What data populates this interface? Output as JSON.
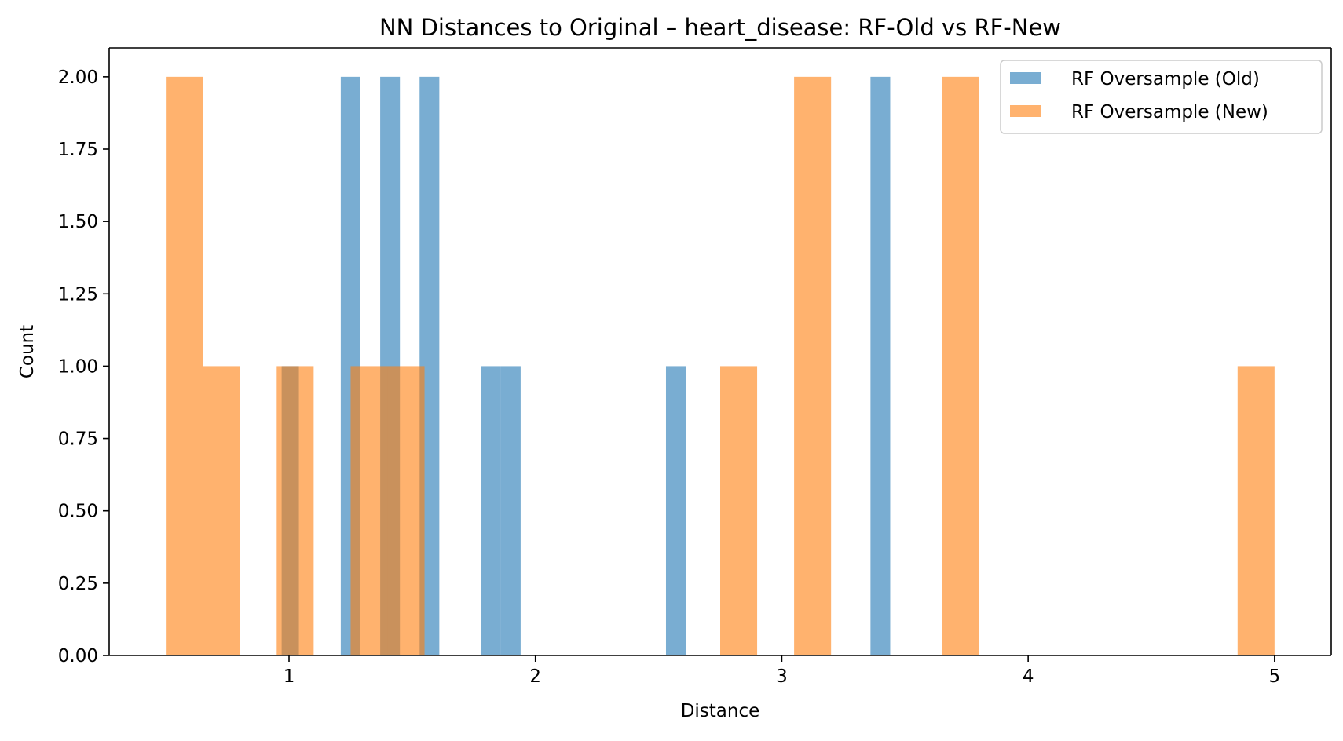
{
  "chart_data": {
    "type": "bar",
    "title": "NN Distances to Original – heart_disease: RF-Old vs RF-New",
    "xlabel": "Distance",
    "ylabel": "Count",
    "xlim": [
      0.27,
      5.23
    ],
    "ylim": [
      0,
      2.1
    ],
    "xticks": [
      1,
      2,
      3,
      4,
      5
    ],
    "xtick_labels": [
      "1",
      "2",
      "3",
      "4",
      "5"
    ],
    "yticks": [
      0,
      0.25,
      0.5,
      0.75,
      1.0,
      1.25,
      1.5,
      1.75,
      2.0
    ],
    "ytick_labels": [
      "0.00",
      "0.25",
      "0.50",
      "0.75",
      "1.00",
      "1.25",
      "1.50",
      "1.75",
      "2.00"
    ],
    "legend_position": "top-right",
    "grid": false,
    "series": [
      {
        "name": "RF Oversample (Old)",
        "color": "#1f77b4",
        "opacity": 0.6,
        "bins": [
          {
            "x0": 0.97,
            "x1": 1.04,
            "count": 1
          },
          {
            "x0": 1.21,
            "x1": 1.29,
            "count": 2
          },
          {
            "x0": 1.37,
            "x1": 1.45,
            "count": 2
          },
          {
            "x0": 1.53,
            "x1": 1.61,
            "count": 2
          },
          {
            "x0": 1.78,
            "x1": 1.86,
            "count": 1
          },
          {
            "x0": 1.86,
            "x1": 1.94,
            "count": 1
          },
          {
            "x0": 2.53,
            "x1": 2.61,
            "count": 1
          },
          {
            "x0": 3.36,
            "x1": 3.44,
            "count": 2
          }
        ]
      },
      {
        "name": "RF Oversample (New)",
        "color": "#ff7f0e",
        "opacity": 0.6,
        "bins": [
          {
            "x0": 0.5,
            "x1": 0.65,
            "count": 2
          },
          {
            "x0": 0.65,
            "x1": 0.8,
            "count": 1
          },
          {
            "x0": 0.95,
            "x1": 1.1,
            "count": 1
          },
          {
            "x0": 1.25,
            "x1": 1.4,
            "count": 1
          },
          {
            "x0": 1.4,
            "x1": 1.55,
            "count": 1
          },
          {
            "x0": 2.75,
            "x1": 2.9,
            "count": 1
          },
          {
            "x0": 3.05,
            "x1": 3.2,
            "count": 2
          },
          {
            "x0": 3.65,
            "x1": 3.8,
            "count": 2
          },
          {
            "x0": 4.85,
            "x1": 5.0,
            "count": 1
          }
        ]
      }
    ]
  }
}
